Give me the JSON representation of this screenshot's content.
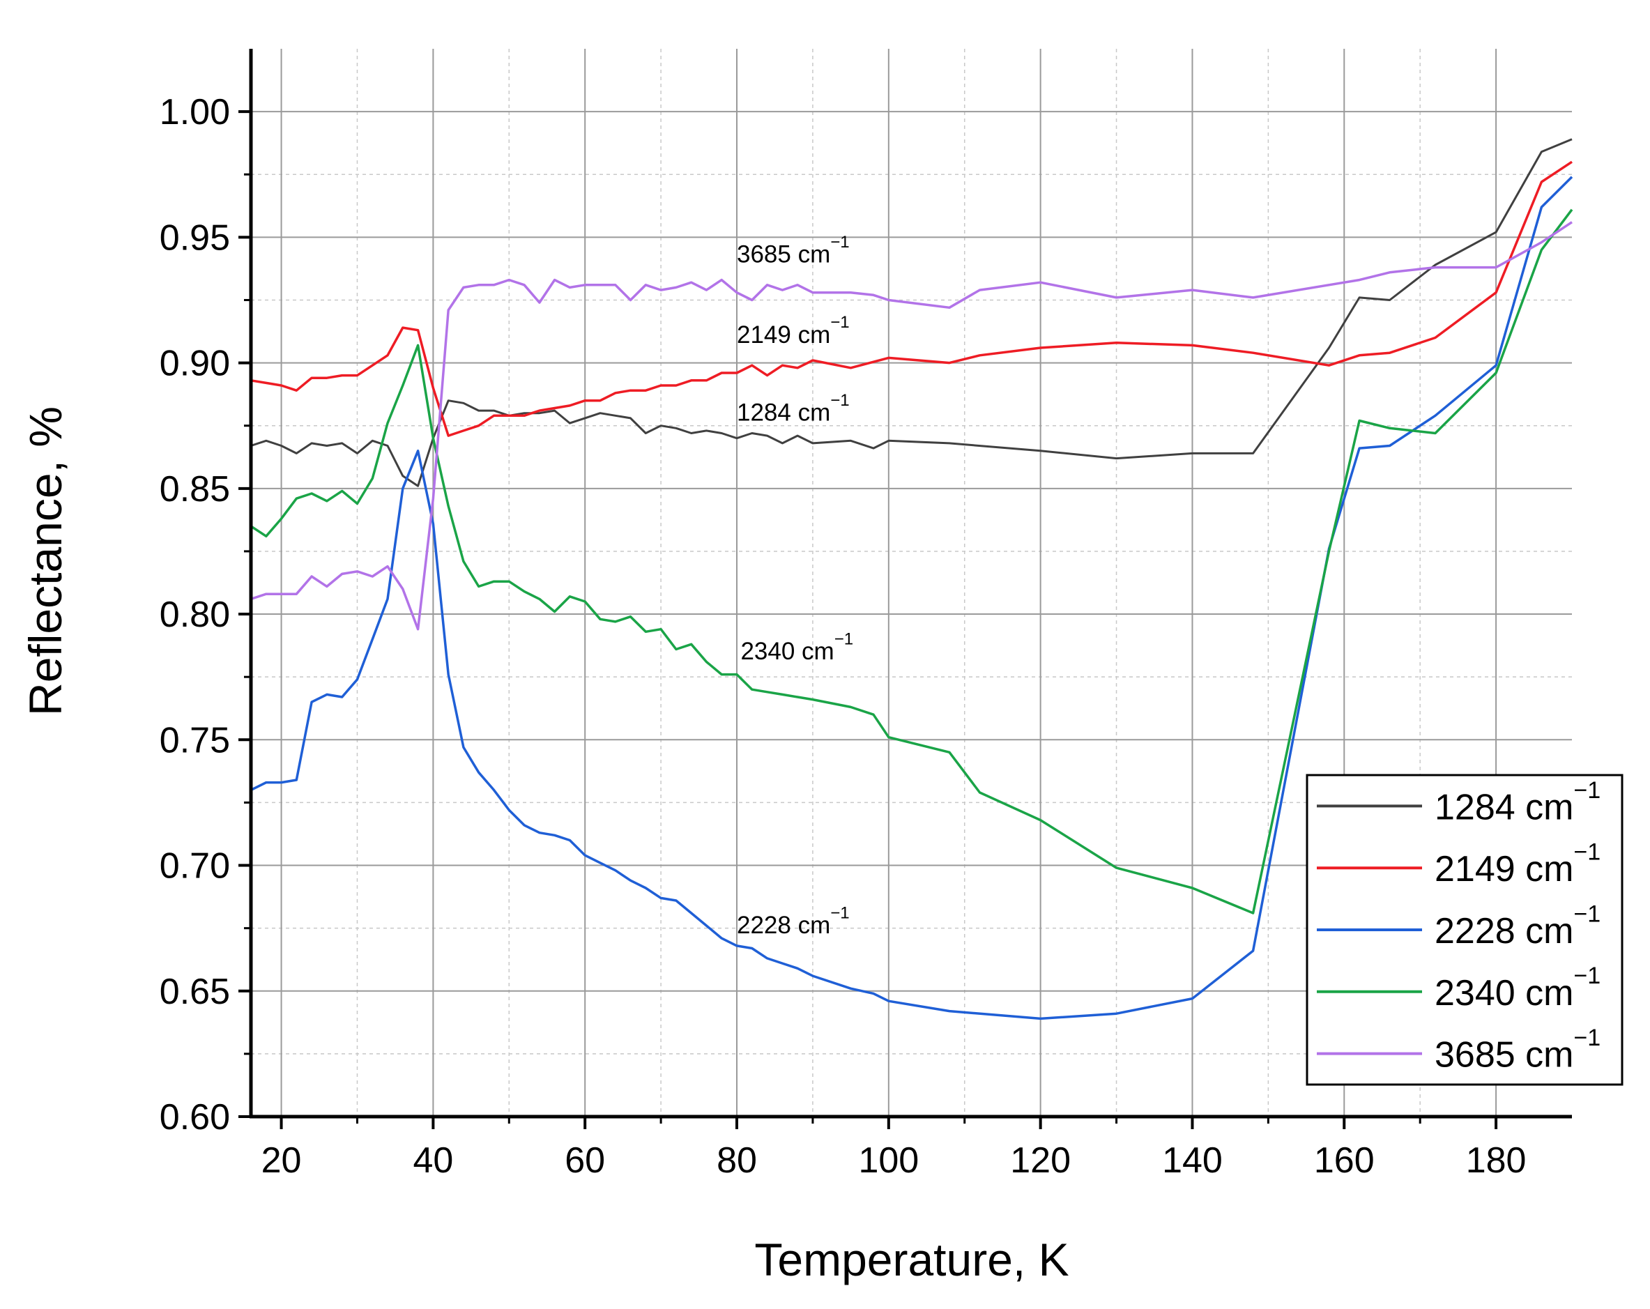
{
  "chart_data": {
    "type": "line",
    "title": "",
    "xlabel": "Temperature, K",
    "ylabel": "Reflectance, %",
    "xlim": [
      16,
      190
    ],
    "ylim": [
      0.6,
      1.025
    ],
    "xticks": [
      20,
      40,
      60,
      80,
      100,
      120,
      140,
      160,
      180
    ],
    "xtick_labels": [
      "20",
      "40",
      "60",
      "80",
      "100",
      "120",
      "140",
      "160",
      "180"
    ],
    "yticks": [
      0.6,
      0.65,
      0.7,
      0.75,
      0.8,
      0.85,
      0.9,
      0.95,
      1.0
    ],
    "ytick_labels": [
      "0.60",
      "0.65",
      "0.70",
      "0.75",
      "0.80",
      "0.85",
      "0.90",
      "0.95",
      "1.00"
    ],
    "grid": true,
    "legend_position": "bottom-right",
    "series": [
      {
        "name": "1284 cm",
        "sup": "−1",
        "color": "#404040",
        "points": [
          [
            16,
            0.867
          ],
          [
            18,
            0.869
          ],
          [
            20,
            0.867
          ],
          [
            22,
            0.864
          ],
          [
            24,
            0.868
          ],
          [
            26,
            0.867
          ],
          [
            28,
            0.868
          ],
          [
            30,
            0.864
          ],
          [
            32,
            0.869
          ],
          [
            34,
            0.867
          ],
          [
            36,
            0.855
          ],
          [
            38,
            0.851
          ],
          [
            40,
            0.87
          ],
          [
            42,
            0.885
          ],
          [
            44,
            0.884
          ],
          [
            46,
            0.881
          ],
          [
            48,
            0.881
          ],
          [
            50,
            0.879
          ],
          [
            52,
            0.88
          ],
          [
            54,
            0.88
          ],
          [
            56,
            0.881
          ],
          [
            58,
            0.876
          ],
          [
            60,
            0.878
          ],
          [
            62,
            0.88
          ],
          [
            64,
            0.879
          ],
          [
            66,
            0.878
          ],
          [
            68,
            0.872
          ],
          [
            70,
            0.875
          ],
          [
            72,
            0.874
          ],
          [
            74,
            0.872
          ],
          [
            76,
            0.873
          ],
          [
            78,
            0.872
          ],
          [
            80,
            0.87
          ],
          [
            82,
            0.872
          ],
          [
            84,
            0.871
          ],
          [
            86,
            0.868
          ],
          [
            88,
            0.871
          ],
          [
            90,
            0.868
          ],
          [
            95,
            0.869
          ],
          [
            98,
            0.866
          ],
          [
            100,
            0.869
          ],
          [
            108,
            0.868
          ],
          [
            120,
            0.865
          ],
          [
            130,
            0.862
          ],
          [
            140,
            0.864
          ],
          [
            148,
            0.864
          ],
          [
            158,
            0.906
          ],
          [
            162,
            0.926
          ],
          [
            166,
            0.925
          ],
          [
            172,
            0.939
          ],
          [
            180,
            0.952
          ],
          [
            186,
            0.984
          ],
          [
            190,
            0.989
          ]
        ]
      },
      {
        "name": "2149 cm",
        "sup": "−1",
        "color": "#ee1c24",
        "points": [
          [
            16,
            0.893
          ],
          [
            18,
            0.892
          ],
          [
            20,
            0.891
          ],
          [
            22,
            0.889
          ],
          [
            24,
            0.894
          ],
          [
            26,
            0.894
          ],
          [
            28,
            0.895
          ],
          [
            30,
            0.895
          ],
          [
            32,
            0.899
          ],
          [
            34,
            0.903
          ],
          [
            36,
            0.914
          ],
          [
            38,
            0.913
          ],
          [
            40,
            0.89
          ],
          [
            42,
            0.871
          ],
          [
            44,
            0.873
          ],
          [
            46,
            0.875
          ],
          [
            48,
            0.879
          ],
          [
            50,
            0.879
          ],
          [
            52,
            0.879
          ],
          [
            54,
            0.881
          ],
          [
            56,
            0.882
          ],
          [
            58,
            0.883
          ],
          [
            60,
            0.885
          ],
          [
            62,
            0.885
          ],
          [
            64,
            0.888
          ],
          [
            66,
            0.889
          ],
          [
            68,
            0.889
          ],
          [
            70,
            0.891
          ],
          [
            72,
            0.891
          ],
          [
            74,
            0.893
          ],
          [
            76,
            0.893
          ],
          [
            78,
            0.896
          ],
          [
            80,
            0.896
          ],
          [
            82,
            0.899
          ],
          [
            84,
            0.895
          ],
          [
            86,
            0.899
          ],
          [
            88,
            0.898
          ],
          [
            90,
            0.901
          ],
          [
            95,
            0.898
          ],
          [
            100,
            0.902
          ],
          [
            108,
            0.9
          ],
          [
            112,
            0.903
          ],
          [
            120,
            0.906
          ],
          [
            130,
            0.908
          ],
          [
            140,
            0.907
          ],
          [
            148,
            0.904
          ],
          [
            158,
            0.899
          ],
          [
            162,
            0.903
          ],
          [
            166,
            0.904
          ],
          [
            172,
            0.91
          ],
          [
            180,
            0.928
          ],
          [
            186,
            0.972
          ],
          [
            190,
            0.98
          ]
        ]
      },
      {
        "name": "2228 cm",
        "sup": "−1",
        "color": "#1f5fd6",
        "points": [
          [
            16,
            0.73
          ],
          [
            18,
            0.733
          ],
          [
            20,
            0.733
          ],
          [
            22,
            0.734
          ],
          [
            24,
            0.765
          ],
          [
            26,
            0.768
          ],
          [
            28,
            0.767
          ],
          [
            30,
            0.774
          ],
          [
            32,
            0.79
          ],
          [
            34,
            0.806
          ],
          [
            36,
            0.85
          ],
          [
            38,
            0.865
          ],
          [
            40,
            0.836
          ],
          [
            42,
            0.776
          ],
          [
            44,
            0.747
          ],
          [
            46,
            0.737
          ],
          [
            48,
            0.73
          ],
          [
            50,
            0.722
          ],
          [
            52,
            0.716
          ],
          [
            54,
            0.713
          ],
          [
            56,
            0.712
          ],
          [
            58,
            0.71
          ],
          [
            60,
            0.704
          ],
          [
            62,
            0.701
          ],
          [
            64,
            0.698
          ],
          [
            66,
            0.694
          ],
          [
            68,
            0.691
          ],
          [
            70,
            0.687
          ],
          [
            72,
            0.686
          ],
          [
            74,
            0.681
          ],
          [
            76,
            0.676
          ],
          [
            78,
            0.671
          ],
          [
            80,
            0.668
          ],
          [
            82,
            0.667
          ],
          [
            84,
            0.663
          ],
          [
            86,
            0.661
          ],
          [
            88,
            0.659
          ],
          [
            90,
            0.656
          ],
          [
            95,
            0.651
          ],
          [
            98,
            0.649
          ],
          [
            100,
            0.646
          ],
          [
            108,
            0.642
          ],
          [
            120,
            0.639
          ],
          [
            130,
            0.641
          ],
          [
            140,
            0.647
          ],
          [
            148,
            0.666
          ],
          [
            158,
            0.826
          ],
          [
            162,
            0.866
          ],
          [
            166,
            0.867
          ],
          [
            172,
            0.879
          ],
          [
            180,
            0.899
          ],
          [
            186,
            0.962
          ],
          [
            190,
            0.974
          ]
        ]
      },
      {
        "name": "2340 cm",
        "sup": "−1",
        "color": "#1aa447",
        "points": [
          [
            16,
            0.835
          ],
          [
            18,
            0.831
          ],
          [
            20,
            0.838
          ],
          [
            22,
            0.846
          ],
          [
            24,
            0.848
          ],
          [
            26,
            0.845
          ],
          [
            28,
            0.849
          ],
          [
            30,
            0.844
          ],
          [
            32,
            0.854
          ],
          [
            34,
            0.876
          ],
          [
            36,
            0.891
          ],
          [
            38,
            0.907
          ],
          [
            40,
            0.87
          ],
          [
            42,
            0.843
          ],
          [
            44,
            0.821
          ],
          [
            46,
            0.811
          ],
          [
            48,
            0.813
          ],
          [
            50,
            0.813
          ],
          [
            52,
            0.809
          ],
          [
            54,
            0.806
          ],
          [
            56,
            0.801
          ],
          [
            58,
            0.807
          ],
          [
            60,
            0.805
          ],
          [
            62,
            0.798
          ],
          [
            64,
            0.797
          ],
          [
            66,
            0.799
          ],
          [
            68,
            0.793
          ],
          [
            70,
            0.794
          ],
          [
            72,
            0.786
          ],
          [
            74,
            0.788
          ],
          [
            76,
            0.781
          ],
          [
            78,
            0.776
          ],
          [
            80,
            0.776
          ],
          [
            82,
            0.77
          ],
          [
            84,
            0.769
          ],
          [
            86,
            0.768
          ],
          [
            88,
            0.767
          ],
          [
            90,
            0.766
          ],
          [
            95,
            0.763
          ],
          [
            98,
            0.76
          ],
          [
            100,
            0.751
          ],
          [
            108,
            0.745
          ],
          [
            112,
            0.729
          ],
          [
            120,
            0.718
          ],
          [
            130,
            0.699
          ],
          [
            140,
            0.691
          ],
          [
            148,
            0.681
          ],
          [
            158,
            0.825
          ],
          [
            162,
            0.877
          ],
          [
            166,
            0.874
          ],
          [
            172,
            0.872
          ],
          [
            180,
            0.896
          ],
          [
            186,
            0.945
          ],
          [
            190,
            0.961
          ]
        ]
      },
      {
        "name": "3685 cm",
        "sup": "−1",
        "color": "#b273e8",
        "points": [
          [
            16,
            0.806
          ],
          [
            18,
            0.808
          ],
          [
            20,
            0.808
          ],
          [
            22,
            0.808
          ],
          [
            24,
            0.815
          ],
          [
            26,
            0.811
          ],
          [
            28,
            0.816
          ],
          [
            30,
            0.817
          ],
          [
            32,
            0.815
          ],
          [
            34,
            0.819
          ],
          [
            36,
            0.81
          ],
          [
            38,
            0.794
          ],
          [
            40,
            0.846
          ],
          [
            42,
            0.921
          ],
          [
            44,
            0.93
          ],
          [
            46,
            0.931
          ],
          [
            48,
            0.931
          ],
          [
            50,
            0.933
          ],
          [
            52,
            0.931
          ],
          [
            54,
            0.924
          ],
          [
            56,
            0.933
          ],
          [
            58,
            0.93
          ],
          [
            60,
            0.931
          ],
          [
            62,
            0.931
          ],
          [
            64,
            0.931
          ],
          [
            66,
            0.925
          ],
          [
            68,
            0.931
          ],
          [
            70,
            0.929
          ],
          [
            72,
            0.93
          ],
          [
            74,
            0.932
          ],
          [
            76,
            0.929
          ],
          [
            78,
            0.933
          ],
          [
            80,
            0.928
          ],
          [
            82,
            0.925
          ],
          [
            84,
            0.931
          ],
          [
            86,
            0.929
          ],
          [
            88,
            0.931
          ],
          [
            90,
            0.928
          ],
          [
            95,
            0.928
          ],
          [
            98,
            0.927
          ],
          [
            100,
            0.925
          ],
          [
            108,
            0.922
          ],
          [
            112,
            0.929
          ],
          [
            120,
            0.932
          ],
          [
            130,
            0.926
          ],
          [
            140,
            0.929
          ],
          [
            148,
            0.926
          ],
          [
            158,
            0.931
          ],
          [
            162,
            0.933
          ],
          [
            166,
            0.936
          ],
          [
            172,
            0.938
          ],
          [
            180,
            0.938
          ],
          [
            186,
            0.948
          ],
          [
            190,
            0.956
          ]
        ]
      }
    ],
    "annotations": [
      {
        "text": "3685 cm",
        "sup": "−1",
        "x": 80,
        "y": 0.94
      },
      {
        "text": "2149 cm",
        "sup": "−1",
        "x": 80,
        "y": 0.908
      },
      {
        "text": "1284 cm",
        "sup": "−1",
        "x": 80,
        "y": 0.877
      },
      {
        "text": "2340 cm",
        "sup": "−1",
        "x": 80.5,
        "y": 0.782
      },
      {
        "text": "2228 cm",
        "sup": "−1",
        "x": 80,
        "y": 0.673
      }
    ],
    "legend": {
      "entries": [
        "1284 cm",
        "2149 cm",
        "2228 cm",
        "2340 cm",
        "3685 cm"
      ]
    }
  }
}
